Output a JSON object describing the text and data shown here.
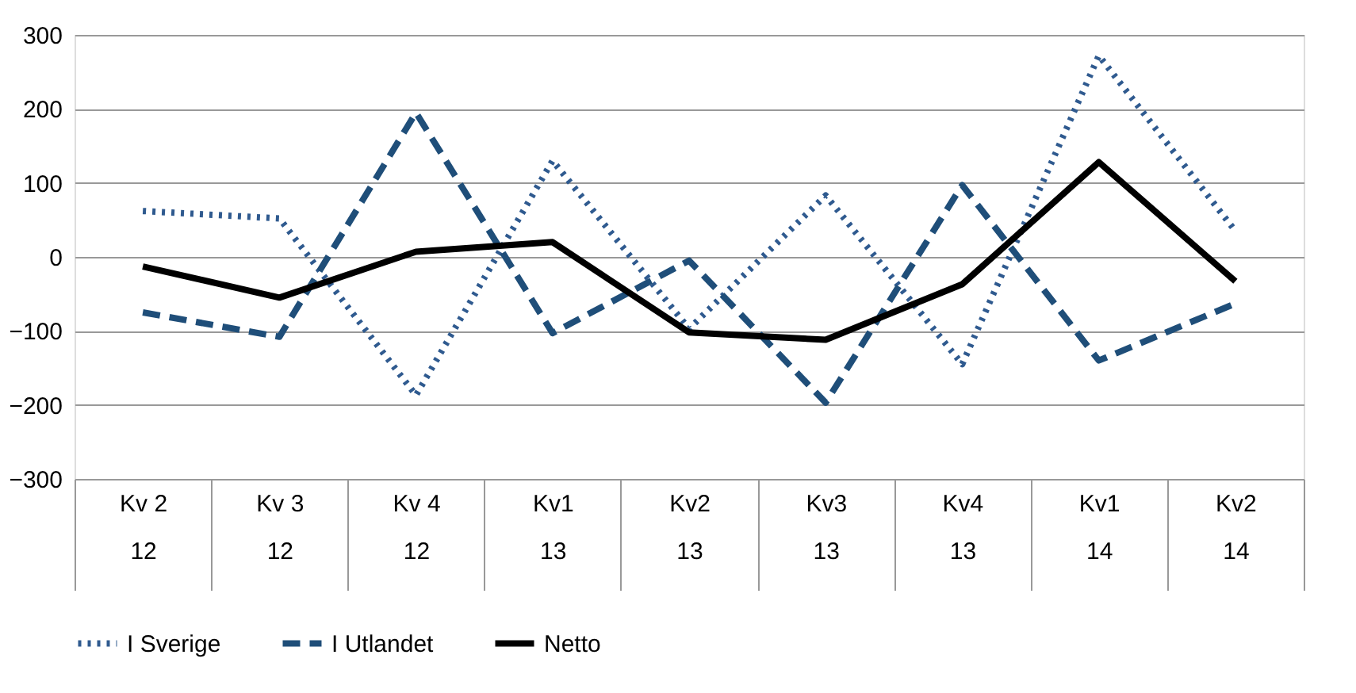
{
  "chart_data": {
    "type": "line",
    "categories": [
      "Kv 2\n12",
      "Kv 3\n12",
      "Kv 4\n12",
      "Kv1\n13",
      "Kv2\n13",
      "Kv3\n13",
      "Kv4\n13",
      "Kv1\n14",
      "Kv2\n14"
    ],
    "series": [
      {
        "name": "I Sverige",
        "color": "#2f5a8f",
        "line_style": "dotted",
        "values": [
          62,
          52,
          -187,
          130,
          -97,
          83,
          -145,
          272,
          35
        ]
      },
      {
        "name": "I Utlandet",
        "color": "#1f4e79",
        "line_style": "dashed",
        "values": [
          -75,
          -108,
          195,
          -103,
          -5,
          -197,
          97,
          -140,
          -63
        ]
      },
      {
        "name": "Netto",
        "color": "#000000",
        "line_style": "solid",
        "values": [
          -13,
          -55,
          7,
          20,
          -102,
          -112,
          -37,
          128,
          -33
        ]
      }
    ],
    "ylim": [
      -300,
      300
    ],
    "yticks": [
      -300,
      -200,
      -100,
      0,
      100,
      200,
      300
    ],
    "grid": "y",
    "legend": "bottom",
    "marker": "none"
  }
}
